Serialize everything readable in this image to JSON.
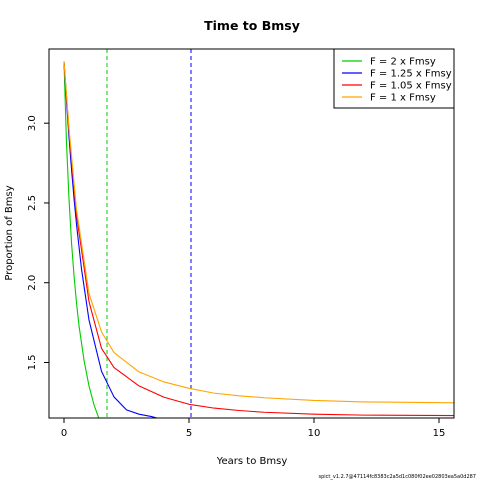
{
  "chart_data": {
    "type": "line",
    "title": "Time to Bmsy",
    "xlabel": "Years to Bmsy",
    "ylabel": "Proportion of Bmsy",
    "xlim": [
      -0.6,
      15.6
    ],
    "ylim": [
      1.152,
      3.465
    ],
    "x_ticks": [
      0,
      5,
      10,
      15
    ],
    "y_ticks": [
      1.5,
      2.0,
      2.5,
      3.0
    ],
    "x_tick_labels": [
      "0",
      "5",
      "10",
      "15"
    ],
    "y_tick_labels": [
      "1.5",
      "2.0",
      "2.5",
      "3.0"
    ],
    "grid": false,
    "legend_position": "top-right",
    "vlines": [
      {
        "x": 1.72,
        "color": "#00cc00",
        "style": "dashed"
      },
      {
        "x": 5.08,
        "color": "#0000ff",
        "style": "dashed"
      }
    ],
    "series": [
      {
        "name": "F = 2 x Fmsy",
        "color": "#00cc00",
        "x": [
          0,
          0.1,
          0.2,
          0.3,
          0.4,
          0.5,
          0.6,
          0.8,
          1.0,
          1.2,
          1.4,
          1.6,
          1.7
        ],
        "y": [
          3.385,
          2.875,
          2.526,
          2.251,
          2.046,
          1.873,
          1.731,
          1.514,
          1.353,
          1.235,
          1.147,
          1.082,
          1.056
        ]
      },
      {
        "name": "F = 1.25 x Fmsy",
        "color": "#0000ff",
        "x": [
          0,
          0.1,
          0.2,
          0.3,
          0.4,
          0.5,
          0.7,
          1.0,
          1.5,
          2.0,
          2.5,
          3.0,
          3.5,
          3.8
        ],
        "y": [
          3.385,
          3.137,
          2.914,
          2.712,
          2.53,
          2.367,
          2.086,
          1.766,
          1.445,
          1.284,
          1.203,
          1.176,
          1.161,
          1.148
        ]
      },
      {
        "name": "F = 1.05 x Fmsy",
        "color": "#ff0000",
        "x": [
          0,
          0.2,
          0.5,
          1.0,
          1.5,
          2.0,
          3.0,
          4.0,
          5.0,
          6.0,
          7.0,
          8.0,
          10.0,
          12.0,
          15.6
        ],
        "y": [
          3.385,
          2.955,
          2.424,
          1.881,
          1.589,
          1.468,
          1.353,
          1.282,
          1.238,
          1.214,
          1.199,
          1.188,
          1.176,
          1.17,
          1.167
        ]
      },
      {
        "name": "F = 1 x Fmsy",
        "color": "#ffa500",
        "x": [
          0,
          0.2,
          0.5,
          1.0,
          1.5,
          2.0,
          3.0,
          4.0,
          5.0,
          6.0,
          7.0,
          8.0,
          10.0,
          12.0,
          15.6
        ],
        "y": [
          3.385,
          2.968,
          2.457,
          1.933,
          1.692,
          1.562,
          1.441,
          1.378,
          1.338,
          1.308,
          1.291,
          1.279,
          1.262,
          1.253,
          1.247
        ]
      }
    ],
    "footnote": "spict_v1.2.7@47114fc8383c2a5d1c080f02ee02803ea5a0d287"
  }
}
